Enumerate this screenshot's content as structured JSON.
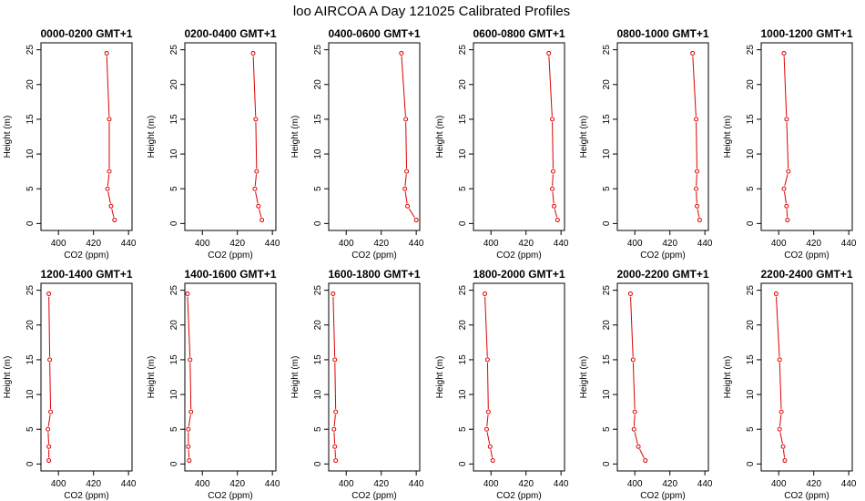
{
  "figure": {
    "title": "loo AIRCOA A  Day 121025  Calibrated Profiles",
    "line_color": "#dd0000",
    "point_color": "#dd0000"
  },
  "chart_data": [
    {
      "type": "line",
      "title": "0000-0200 GMT+1",
      "xlabel": "CO2 (ppm)",
      "ylabel": "Height (m)",
      "xlim": [
        390,
        442
      ],
      "ylim": [
        -1,
        26
      ],
      "xticks": [
        400,
        420,
        440
      ],
      "yticks": [
        0,
        5,
        10,
        15,
        20,
        25
      ],
      "series": [
        {
          "x": [
            432,
            430,
            428,
            429,
            429,
            427.5
          ],
          "y": [
            0.5,
            2.5,
            5,
            7.5,
            15,
            24.5
          ]
        }
      ]
    },
    {
      "type": "line",
      "title": "0200-0400 GMT+1",
      "xlabel": "CO2 (ppm)",
      "ylabel": "Height (m)",
      "xlim": [
        390,
        442
      ],
      "ylim": [
        -1,
        26
      ],
      "xticks": [
        400,
        420,
        440
      ],
      "yticks": [
        0,
        5,
        10,
        15,
        20,
        25
      ],
      "series": [
        {
          "x": [
            434,
            432,
            430,
            431,
            430.5,
            429
          ],
          "y": [
            0.5,
            2.5,
            5,
            7.5,
            15,
            24.5
          ]
        }
      ]
    },
    {
      "type": "line",
      "title": "0400-0600 GMT+1",
      "xlabel": "CO2 (ppm)",
      "ylabel": "Height (m)",
      "xlim": [
        390,
        442
      ],
      "ylim": [
        -1,
        26
      ],
      "xticks": [
        400,
        420,
        440
      ],
      "yticks": [
        0,
        5,
        10,
        15,
        20,
        25
      ],
      "series": [
        {
          "x": [
            440,
            435,
            433.5,
            434.5,
            434,
            431.5
          ],
          "y": [
            0.5,
            2.5,
            5,
            7.5,
            15,
            24.5
          ]
        }
      ]
    },
    {
      "type": "line",
      "title": "0600-0800 GMT+1",
      "xlabel": "CO2 (ppm)",
      "ylabel": "Height (m)",
      "xlim": [
        390,
        442
      ],
      "ylim": [
        -1,
        26
      ],
      "xticks": [
        400,
        420,
        440
      ],
      "yticks": [
        0,
        5,
        10,
        15,
        20,
        25
      ],
      "series": [
        {
          "x": [
            438,
            436,
            435,
            435.5,
            435,
            433
          ],
          "y": [
            0.5,
            2.5,
            5,
            7.5,
            15,
            24.5
          ]
        }
      ]
    },
    {
      "type": "line",
      "title": "0800-1000 GMT+1",
      "xlabel": "CO2 (ppm)",
      "ylabel": "Height (m)",
      "xlim": [
        390,
        442
      ],
      "ylim": [
        -1,
        26
      ],
      "xticks": [
        400,
        420,
        440
      ],
      "yticks": [
        0,
        5,
        10,
        15,
        20,
        25
      ],
      "series": [
        {
          "x": [
            437,
            435.5,
            435,
            435.5,
            435,
            433
          ],
          "y": [
            0.5,
            2.5,
            5,
            7.5,
            15,
            24.5
          ]
        }
      ]
    },
    {
      "type": "line",
      "title": "1000-1200 GMT+1",
      "xlabel": "CO2 (ppm)",
      "ylabel": "Height (m)",
      "xlim": [
        390,
        442
      ],
      "ylim": [
        -1,
        26
      ],
      "xticks": [
        400,
        420,
        440
      ],
      "yticks": [
        0,
        5,
        10,
        15,
        20,
        25
      ],
      "series": [
        {
          "x": [
            405,
            404.5,
            403,
            405.5,
            404.5,
            403
          ],
          "y": [
            0.5,
            2.5,
            5,
            7.5,
            15,
            24.5
          ]
        }
      ]
    },
    {
      "type": "line",
      "title": "1200-1400 GMT+1",
      "xlabel": "CO2 (ppm)",
      "ylabel": "Height (m)",
      "xlim": [
        390,
        442
      ],
      "ylim": [
        -1,
        26
      ],
      "xticks": [
        400,
        420,
        440
      ],
      "yticks": [
        0,
        5,
        10,
        15,
        20,
        25
      ],
      "series": [
        {
          "x": [
            394.5,
            394.5,
            394,
            395.5,
            395,
            394.5
          ],
          "y": [
            0.5,
            2.5,
            5,
            7.5,
            15,
            24.5
          ]
        }
      ]
    },
    {
      "type": "line",
      "title": "1400-1600 GMT+1",
      "xlabel": "CO2 (ppm)",
      "ylabel": "Height (m)",
      "xlim": [
        390,
        442
      ],
      "ylim": [
        -1,
        26
      ],
      "xticks": [
        400,
        420,
        440
      ],
      "yticks": [
        0,
        5,
        10,
        15,
        20,
        25
      ],
      "series": [
        {
          "x": [
            392.5,
            392,
            392,
            393.5,
            393,
            391.5
          ],
          "y": [
            0.5,
            2.5,
            5,
            7.5,
            15,
            24.5
          ]
        }
      ]
    },
    {
      "type": "line",
      "title": "1600-1800 GMT+1",
      "xlabel": "CO2 (ppm)",
      "ylabel": "Height (m)",
      "xlim": [
        390,
        442
      ],
      "ylim": [
        -1,
        26
      ],
      "xticks": [
        400,
        420,
        440
      ],
      "yticks": [
        0,
        5,
        10,
        15,
        20,
        25
      ],
      "series": [
        {
          "x": [
            394,
            393.5,
            393,
            394,
            393.5,
            392.5
          ],
          "y": [
            0.5,
            2.5,
            5,
            7.5,
            15,
            24.5
          ]
        }
      ]
    },
    {
      "type": "line",
      "title": "1800-2000 GMT+1",
      "xlabel": "CO2 (ppm)",
      "ylabel": "Height (m)",
      "xlim": [
        390,
        442
      ],
      "ylim": [
        -1,
        26
      ],
      "xticks": [
        400,
        420,
        440
      ],
      "yticks": [
        0,
        5,
        10,
        15,
        20,
        25
      ],
      "series": [
        {
          "x": [
            401,
            399.5,
            397.5,
            398.5,
            398,
            396.5
          ],
          "y": [
            0.5,
            2.5,
            5,
            7.5,
            15,
            24.5
          ]
        }
      ]
    },
    {
      "type": "line",
      "title": "2000-2200 GMT+1",
      "xlabel": "CO2 (ppm)",
      "ylabel": "Height (m)",
      "xlim": [
        390,
        442
      ],
      "ylim": [
        -1,
        26
      ],
      "xticks": [
        400,
        420,
        440
      ],
      "yticks": [
        0,
        5,
        10,
        15,
        20,
        25
      ],
      "series": [
        {
          "x": [
            406,
            402,
            399.5,
            400,
            399,
            397.5
          ],
          "y": [
            0.5,
            2.5,
            5,
            7.5,
            15,
            24.5
          ]
        }
      ]
    },
    {
      "type": "line",
      "title": "2200-2400 GMT+1",
      "xlabel": "CO2 (ppm)",
      "ylabel": "Height (m)",
      "xlim": [
        390,
        442
      ],
      "ylim": [
        -1,
        26
      ],
      "xticks": [
        400,
        420,
        440
      ],
      "yticks": [
        0,
        5,
        10,
        15,
        20,
        25
      ],
      "series": [
        {
          "x": [
            403.5,
            402.5,
            400.5,
            401.5,
            400.5,
            398.5
          ],
          "y": [
            0.5,
            2.5,
            5,
            7.5,
            15,
            24.5
          ]
        }
      ]
    }
  ]
}
